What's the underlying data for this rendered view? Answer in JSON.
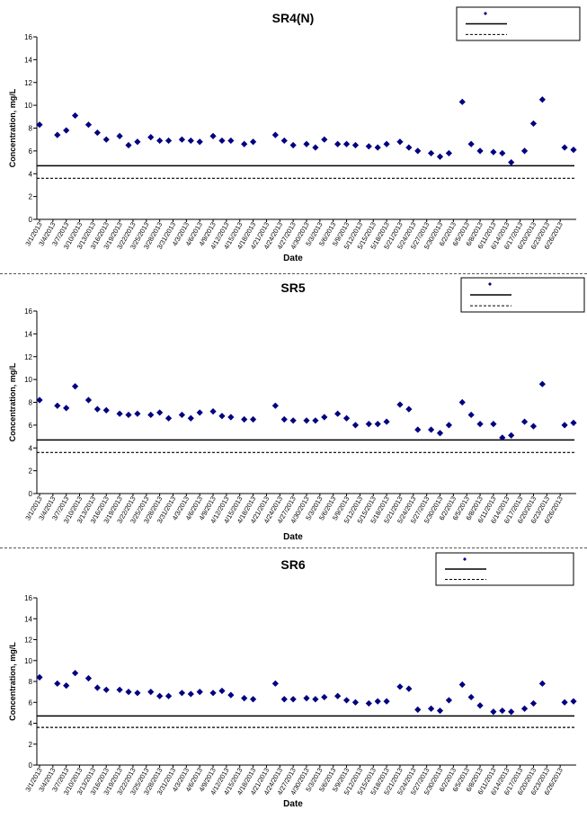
{
  "chart_data": [
    {
      "type": "scatter",
      "title": "SR4(N)",
      "xlabel": "Date",
      "ylabel": "Concentration, mg/L",
      "ylim": [
        0,
        16
      ],
      "yticks": [
        0,
        2,
        4,
        6,
        8,
        10,
        12,
        14,
        16
      ],
      "xlim": [
        "3/1/2013",
        "6/29/2013"
      ],
      "xticks": [
        "3/1/2013",
        "3/4/2013",
        "3/7/2013",
        "3/10/2013",
        "3/13/2013",
        "3/16/2013",
        "3/19/2013",
        "3/22/2013",
        "3/25/2013",
        "3/28/2013",
        "3/31/2013",
        "4/3/2013",
        "4/6/2013",
        "4/9/2013",
        "4/12/2013",
        "4/15/2013",
        "4/18/2013",
        "4/21/2013",
        "4/24/2013",
        "4/27/2013",
        "4/30/2013",
        "5/3/2013",
        "5/6/2013",
        "5/9/2013",
        "5/12/2013",
        "5/15/2013",
        "5/18/2013",
        "5/21/2013",
        "5/24/2013",
        "5/27/2013",
        "5/30/2013",
        "6/2/2013",
        "6/5/2013",
        "6/8/2013",
        "6/11/2013",
        "6/14/2013",
        "6/17/2013",
        "6/20/2013",
        "6/23/2013",
        "6/26/2013"
      ],
      "grid": false,
      "legend_position": "top-right",
      "series": [
        {
          "color": "#000080",
          "marker": "diamond",
          "points": [
            [
              "3/1/2013",
              8.3
            ],
            [
              "3/5/2013",
              7.4
            ],
            [
              "3/7/2013",
              7.8
            ],
            [
              "3/9/2013",
              9.1
            ],
            [
              "3/12/2013",
              8.3
            ],
            [
              "3/14/2013",
              7.6
            ],
            [
              "3/16/2013",
              7.0
            ],
            [
              "3/19/2013",
              7.3
            ],
            [
              "3/21/2013",
              6.5
            ],
            [
              "3/23/2013",
              6.8
            ],
            [
              "3/26/2013",
              7.2
            ],
            [
              "3/28/2013",
              6.9
            ],
            [
              "3/30/2013",
              6.9
            ],
            [
              "4/2/2013",
              7.0
            ],
            [
              "4/4/2013",
              6.9
            ],
            [
              "4/6/2013",
              6.8
            ],
            [
              "4/9/2013",
              7.3
            ],
            [
              "4/11/2013",
              6.9
            ],
            [
              "4/13/2013",
              6.9
            ],
            [
              "4/16/2013",
              6.6
            ],
            [
              "4/18/2013",
              6.8
            ],
            [
              "4/23/2013",
              7.4
            ],
            [
              "4/25/2013",
              6.9
            ],
            [
              "4/27/2013",
              6.5
            ],
            [
              "4/30/2013",
              6.6
            ],
            [
              "5/2/2013",
              6.3
            ],
            [
              "5/4/2013",
              7.0
            ],
            [
              "5/7/2013",
              6.6
            ],
            [
              "5/9/2013",
              6.6
            ],
            [
              "5/11/2013",
              6.5
            ],
            [
              "5/14/2013",
              6.4
            ],
            [
              "5/16/2013",
              6.3
            ],
            [
              "5/18/2013",
              6.6
            ],
            [
              "5/21/2013",
              6.8
            ],
            [
              "5/23/2013",
              6.3
            ],
            [
              "5/25/2013",
              6.0
            ],
            [
              "5/28/2013",
              5.8
            ],
            [
              "5/30/2013",
              5.5
            ],
            [
              "6/1/2013",
              5.8
            ],
            [
              "6/4/2013",
              10.3
            ],
            [
              "6/6/2013",
              6.6
            ],
            [
              "6/8/2013",
              6.0
            ],
            [
              "6/11/2013",
              5.9
            ],
            [
              "6/13/2013",
              5.8
            ],
            [
              "6/15/2013",
              5.0
            ],
            [
              "6/18/2013",
              6.0
            ],
            [
              "6/20/2013",
              8.4
            ],
            [
              "6/22/2013",
              10.5
            ],
            [
              "6/27/2013",
              6.3
            ],
            [
              "6/29/2013",
              6.1
            ]
          ]
        }
      ],
      "reference_lines": [
        {
          "value": 4.7,
          "style": "solid"
        },
        {
          "value": 3.6,
          "style": "dashed"
        }
      ]
    },
    {
      "type": "scatter",
      "title": "SR5",
      "xlabel": "Date",
      "ylabel": "Concentration, mg/L",
      "ylim": [
        0,
        16
      ],
      "yticks": [
        0,
        2,
        4,
        6,
        8,
        10,
        12,
        14,
        16
      ],
      "xlim": [
        "3/1/2013",
        "6/29/2013"
      ],
      "xticks": [
        "3/1/2013",
        "3/4/2013",
        "3/7/2013",
        "3/10/2013",
        "3/13/2013",
        "3/16/2013",
        "3/19/2013",
        "3/22/2013",
        "3/25/2013",
        "3/28/2013",
        "3/31/2013",
        "4/3/2013",
        "4/6/2013",
        "4/9/2013",
        "4/12/2013",
        "4/15/2013",
        "4/18/2013",
        "4/21/2013",
        "4/24/2013",
        "4/27/2013",
        "4/30/2013",
        "5/3/2013",
        "5/6/2013",
        "5/9/2013",
        "5/12/2013",
        "5/15/2013",
        "5/18/2013",
        "5/21/2013",
        "5/24/2013",
        "5/27/2013",
        "5/30/2013",
        "6/2/2013",
        "6/5/2013",
        "6/8/2013",
        "6/11/2013",
        "6/14/2013",
        "6/17/2013",
        "6/20/2013",
        "6/23/2013",
        "6/26/2013"
      ],
      "grid": false,
      "legend_position": "top-right",
      "series": [
        {
          "color": "#000080",
          "marker": "diamond",
          "points": [
            [
              "3/1/2013",
              8.2
            ],
            [
              "3/5/2013",
              7.7
            ],
            [
              "3/7/2013",
              7.5
            ],
            [
              "3/9/2013",
              9.4
            ],
            [
              "3/12/2013",
              8.2
            ],
            [
              "3/14/2013",
              7.4
            ],
            [
              "3/16/2013",
              7.3
            ],
            [
              "3/19/2013",
              7.0
            ],
            [
              "3/21/2013",
              6.9
            ],
            [
              "3/23/2013",
              7.0
            ],
            [
              "3/26/2013",
              6.9
            ],
            [
              "3/28/2013",
              7.1
            ],
            [
              "3/30/2013",
              6.6
            ],
            [
              "4/2/2013",
              6.9
            ],
            [
              "4/4/2013",
              6.6
            ],
            [
              "4/6/2013",
              7.1
            ],
            [
              "4/9/2013",
              7.2
            ],
            [
              "4/11/2013",
              6.8
            ],
            [
              "4/13/2013",
              6.7
            ],
            [
              "4/16/2013",
              6.5
            ],
            [
              "4/18/2013",
              6.5
            ],
            [
              "4/23/2013",
              7.7
            ],
            [
              "4/25/2013",
              6.5
            ],
            [
              "4/27/2013",
              6.4
            ],
            [
              "4/30/2013",
              6.4
            ],
            [
              "5/2/2013",
              6.4
            ],
            [
              "5/4/2013",
              6.7
            ],
            [
              "5/7/2013",
              7.0
            ],
            [
              "5/9/2013",
              6.6
            ],
            [
              "5/11/2013",
              6.0
            ],
            [
              "5/14/2013",
              6.1
            ],
            [
              "5/16/2013",
              6.1
            ],
            [
              "5/18/2013",
              6.3
            ],
            [
              "5/21/2013",
              7.8
            ],
            [
              "5/23/2013",
              7.4
            ],
            [
              "5/25/2013",
              5.6
            ],
            [
              "5/28/2013",
              5.6
            ],
            [
              "5/30/2013",
              5.3
            ],
            [
              "6/1/2013",
              6.0
            ],
            [
              "6/4/2013",
              8.0
            ],
            [
              "6/6/2013",
              6.9
            ],
            [
              "6/8/2013",
              6.1
            ],
            [
              "6/11/2013",
              6.1
            ],
            [
              "6/13/2013",
              4.9
            ],
            [
              "6/15/2013",
              5.1
            ],
            [
              "6/18/2013",
              6.3
            ],
            [
              "6/20/2013",
              5.9
            ],
            [
              "6/22/2013",
              9.6
            ],
            [
              "6/27/2013",
              6.0
            ],
            [
              "6/29/2013",
              6.2
            ]
          ]
        }
      ],
      "reference_lines": [
        {
          "value": 4.7,
          "style": "solid"
        },
        {
          "value": 3.6,
          "style": "dashed"
        }
      ]
    },
    {
      "type": "scatter",
      "title": "SR6",
      "xlabel": "Date",
      "ylabel": "Concentration, mg/L",
      "ylim": [
        0,
        16
      ],
      "yticks": [
        0,
        2,
        4,
        6,
        8,
        10,
        12,
        14,
        16
      ],
      "xlim": [
        "3/1/2013",
        "6/29/2013"
      ],
      "xticks": [
        "3/1/2013",
        "3/4/2013",
        "3/7/2013",
        "3/10/2013",
        "3/13/2013",
        "3/16/2013",
        "3/19/2013",
        "3/22/2013",
        "3/25/2013",
        "3/28/2013",
        "3/31/2013",
        "4/3/2013",
        "4/6/2013",
        "4/9/2013",
        "4/12/2013",
        "4/15/2013",
        "4/18/2013",
        "4/21/2013",
        "4/24/2013",
        "4/27/2013",
        "4/30/2013",
        "5/3/2013",
        "5/6/2013",
        "5/9/2013",
        "5/12/2013",
        "5/15/2013",
        "5/18/2013",
        "5/21/2013",
        "5/24/2013",
        "5/27/2013",
        "5/30/2013",
        "6/2/2013",
        "6/5/2013",
        "6/8/2013",
        "6/11/2013",
        "6/14/2013",
        "6/17/2013",
        "6/20/2013",
        "6/23/2013",
        "6/26/2013"
      ],
      "grid": false,
      "legend_position": "top-right",
      "series": [
        {
          "color": "#000080",
          "marker": "diamond",
          "points": [
            [
              "3/1/2013",
              8.4
            ],
            [
              "3/5/2013",
              7.8
            ],
            [
              "3/7/2013",
              7.6
            ],
            [
              "3/9/2013",
              8.8
            ],
            [
              "3/12/2013",
              8.3
            ],
            [
              "3/14/2013",
              7.4
            ],
            [
              "3/16/2013",
              7.2
            ],
            [
              "3/19/2013",
              7.2
            ],
            [
              "3/21/2013",
              7.0
            ],
            [
              "3/23/2013",
              6.9
            ],
            [
              "3/26/2013",
              7.0
            ],
            [
              "3/28/2013",
              6.6
            ],
            [
              "3/30/2013",
              6.6
            ],
            [
              "4/2/2013",
              6.9
            ],
            [
              "4/4/2013",
              6.8
            ],
            [
              "4/6/2013",
              7.0
            ],
            [
              "4/9/2013",
              6.9
            ],
            [
              "4/11/2013",
              7.1
            ],
            [
              "4/13/2013",
              6.7
            ],
            [
              "4/16/2013",
              6.4
            ],
            [
              "4/18/2013",
              6.3
            ],
            [
              "4/23/2013",
              7.8
            ],
            [
              "4/25/2013",
              6.3
            ],
            [
              "4/27/2013",
              6.3
            ],
            [
              "4/30/2013",
              6.4
            ],
            [
              "5/2/2013",
              6.3
            ],
            [
              "5/4/2013",
              6.5
            ],
            [
              "5/7/2013",
              6.6
            ],
            [
              "5/9/2013",
              6.2
            ],
            [
              "5/11/2013",
              6.0
            ],
            [
              "5/14/2013",
              5.9
            ],
            [
              "5/16/2013",
              6.1
            ],
            [
              "5/18/2013",
              6.1
            ],
            [
              "5/21/2013",
              7.5
            ],
            [
              "5/23/2013",
              7.3
            ],
            [
              "5/25/2013",
              5.3
            ],
            [
              "5/28/2013",
              5.4
            ],
            [
              "5/30/2013",
              5.2
            ],
            [
              "6/1/2013",
              6.2
            ],
            [
              "6/4/2013",
              7.7
            ],
            [
              "6/6/2013",
              6.5
            ],
            [
              "6/8/2013",
              5.7
            ],
            [
              "6/11/2013",
              5.1
            ],
            [
              "6/13/2013",
              5.2
            ],
            [
              "6/15/2013",
              5.1
            ],
            [
              "6/18/2013",
              5.4
            ],
            [
              "6/20/2013",
              5.9
            ],
            [
              "6/22/2013",
              7.8
            ],
            [
              "6/27/2013",
              6.0
            ],
            [
              "6/29/2013",
              6.1
            ]
          ]
        }
      ],
      "reference_lines": [
        {
          "value": 4.7,
          "style": "solid"
        },
        {
          "value": 3.6,
          "style": "dashed"
        }
      ]
    }
  ]
}
